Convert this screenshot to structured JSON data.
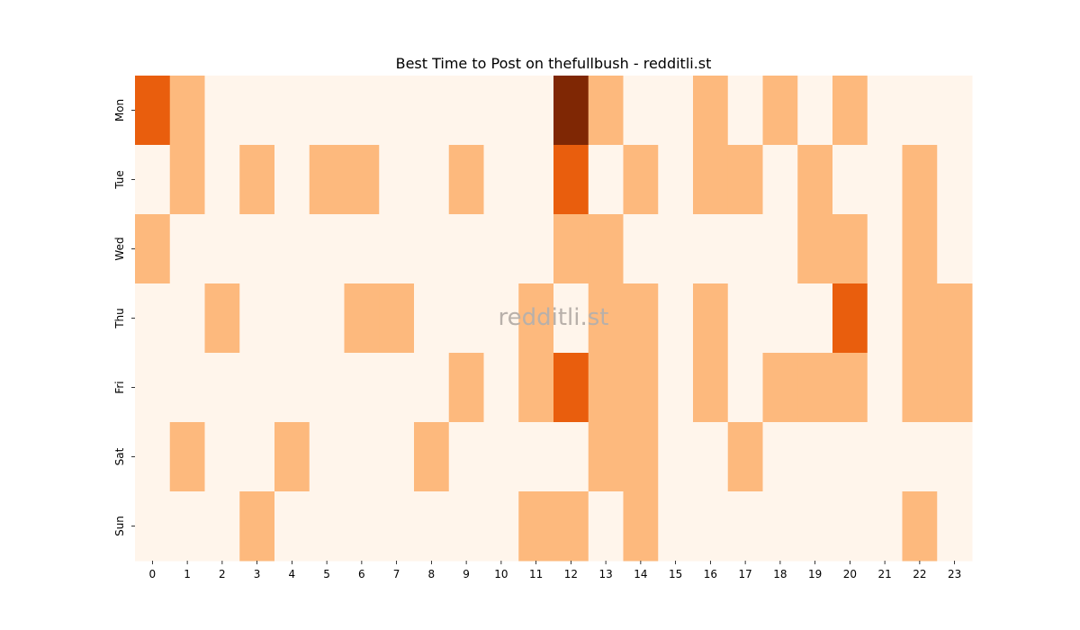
{
  "chart_data": {
    "type": "heatmap",
    "title": "Best Time to Post on thefullbush - redditli.st",
    "xlabel": "",
    "ylabel": "",
    "x_categories": [
      "0",
      "1",
      "2",
      "3",
      "4",
      "5",
      "6",
      "7",
      "8",
      "9",
      "10",
      "11",
      "12",
      "13",
      "14",
      "15",
      "16",
      "17",
      "18",
      "19",
      "20",
      "21",
      "22",
      "23"
    ],
    "y_categories": [
      "Mon",
      "Tue",
      "Wed",
      "Thu",
      "Fri",
      "Sat",
      "Sun"
    ],
    "values": [
      [
        2,
        1,
        0,
        0,
        0,
        0,
        0,
        0,
        0,
        0,
        0,
        0,
        3,
        1,
        0,
        0,
        1,
        0,
        1,
        0,
        1,
        0,
        0,
        0
      ],
      [
        0,
        1,
        0,
        1,
        0,
        1,
        1,
        0,
        0,
        1,
        0,
        0,
        2,
        0,
        1,
        0,
        1,
        1,
        0,
        1,
        0,
        0,
        1,
        0
      ],
      [
        1,
        0,
        0,
        0,
        0,
        0,
        0,
        0,
        0,
        0,
        0,
        0,
        1,
        1,
        0,
        0,
        0,
        0,
        0,
        1,
        1,
        0,
        1,
        0
      ],
      [
        0,
        0,
        1,
        0,
        0,
        0,
        1,
        1,
        0,
        0,
        0,
        1,
        0,
        1,
        1,
        0,
        1,
        0,
        0,
        0,
        2,
        0,
        1,
        1
      ],
      [
        0,
        0,
        0,
        0,
        0,
        0,
        0,
        0,
        0,
        1,
        0,
        1,
        2,
        1,
        1,
        0,
        1,
        0,
        1,
        1,
        1,
        0,
        1,
        1
      ],
      [
        0,
        1,
        0,
        0,
        1,
        0,
        0,
        0,
        1,
        0,
        0,
        0,
        0,
        1,
        1,
        0,
        0,
        1,
        0,
        0,
        0,
        0,
        0,
        0
      ],
      [
        0,
        0,
        0,
        1,
        0,
        0,
        0,
        0,
        0,
        0,
        0,
        1,
        1,
        0,
        1,
        0,
        0,
        0,
        0,
        0,
        0,
        0,
        1,
        0
      ]
    ],
    "colormap": [
      "#fff5eb",
      "#fdb97d",
      "#e95e0d",
      "#7f2704"
    ],
    "colorbar": false,
    "watermark": "redditli.st"
  }
}
